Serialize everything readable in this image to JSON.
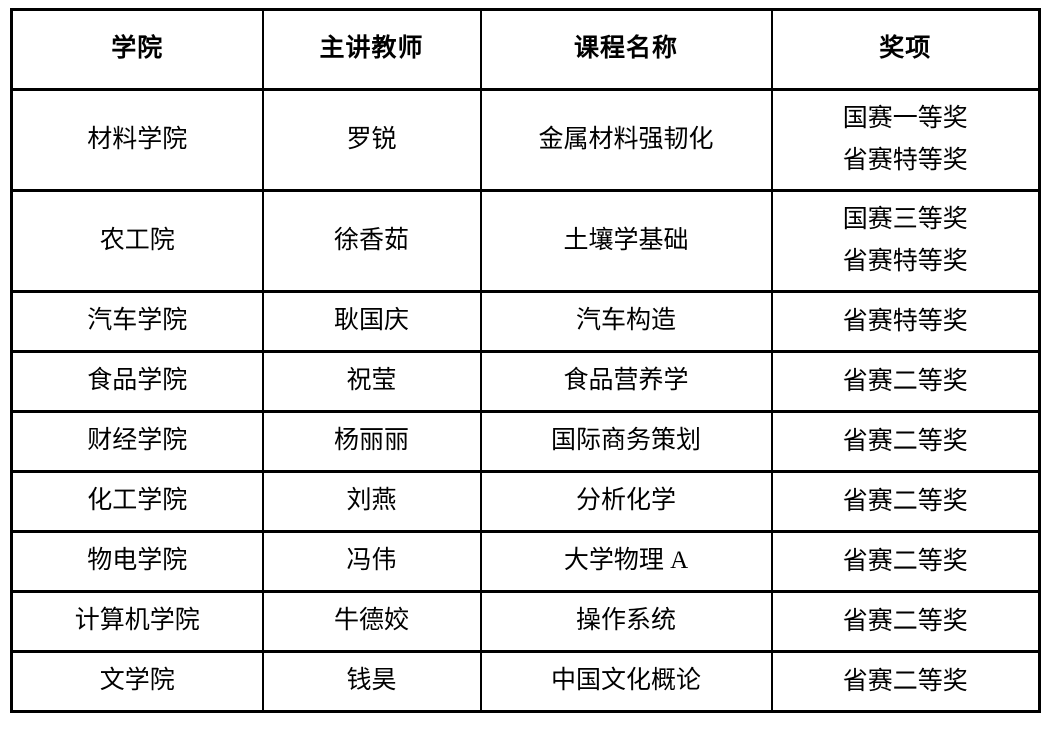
{
  "table": {
    "headers": [
      {
        "label": "学院"
      },
      {
        "label": "主讲教师"
      },
      {
        "label": "课程名称"
      },
      {
        "label": "奖项"
      }
    ],
    "rows": [
      {
        "college": "材料学院",
        "teacher": "罗锐",
        "course": "金属材料强韧化",
        "awards": [
          "国赛一等奖",
          "省赛特等奖"
        ]
      },
      {
        "college": "农工院",
        "teacher": "徐香茹",
        "course": "土壤学基础",
        "awards": [
          "国赛三等奖",
          "省赛特等奖"
        ]
      },
      {
        "college": "汽车学院",
        "teacher": "耿国庆",
        "course": "汽车构造",
        "awards": [
          "省赛特等奖"
        ]
      },
      {
        "college": "食品学院",
        "teacher": "祝莹",
        "course": "食品营养学",
        "awards": [
          "省赛二等奖"
        ]
      },
      {
        "college": "财经学院",
        "teacher": "杨丽丽",
        "course": "国际商务策划",
        "awards": [
          "省赛二等奖"
        ]
      },
      {
        "college": "化工学院",
        "teacher": "刘燕",
        "course": "分析化学",
        "awards": [
          "省赛二等奖"
        ]
      },
      {
        "college": "物电学院",
        "teacher": "冯伟",
        "course": "大学物理 A",
        "awards": [
          "省赛二等奖"
        ]
      },
      {
        "college": "计算机学院",
        "teacher": "牛德姣",
        "course": "操作系统",
        "awards": [
          "省赛二等奖"
        ]
      },
      {
        "college": "文学院",
        "teacher": "钱昊",
        "course": "中国文化概论",
        "awards": [
          "省赛二等奖"
        ]
      }
    ],
    "colors": {
      "border": "#000000",
      "text": "#000000",
      "background": "#ffffff"
    }
  }
}
